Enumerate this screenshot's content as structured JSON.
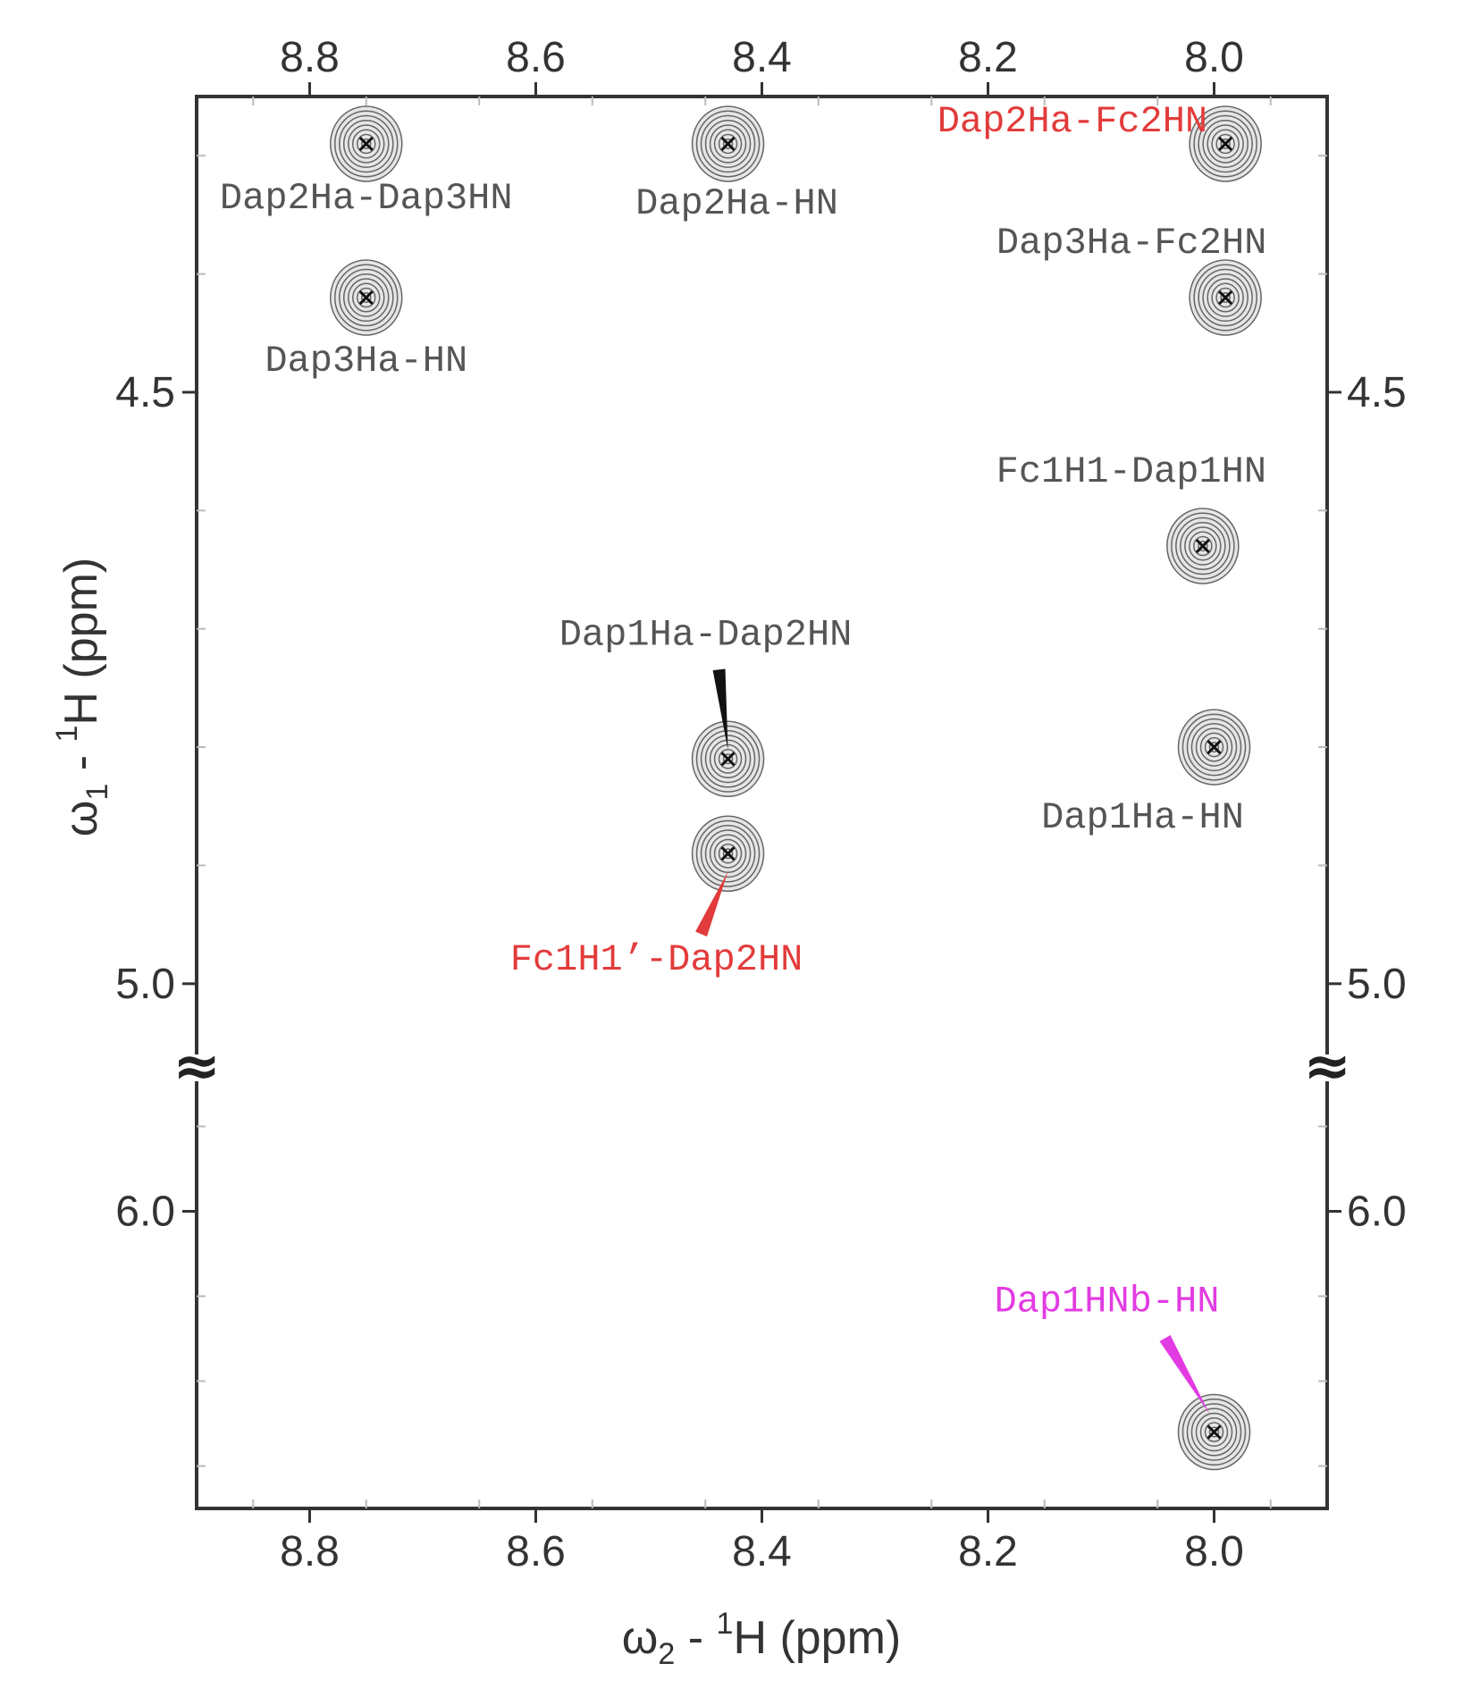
{
  "chart_data": {
    "type": "scatter",
    "title": "",
    "xlabel": {
      "main": "ω",
      "sub": "2",
      "dash": " - ",
      "sup": "1",
      "unit": "H  (ppm)"
    },
    "ylabel": {
      "main": "ω",
      "sub": "1",
      "dash": " - ",
      "sup": "1",
      "unit": "H  (ppm)"
    },
    "xlim": [
      8.9,
      7.9
    ],
    "x_reversed": true,
    "y_reversed": true,
    "axis_break": {
      "between": [
        5.05,
        5.85
      ],
      "symbol": "≈"
    },
    "y_segments": [
      {
        "range": [
          4.25,
          5.05
        ]
      },
      {
        "range": [
          5.85,
          6.35
        ]
      }
    ],
    "x_ticks": [
      "8.8",
      "8.6",
      "8.4",
      "8.2",
      "8.0"
    ],
    "x_tick_values": [
      8.8,
      8.6,
      8.4,
      8.2,
      8.0
    ],
    "y_ticks": [
      "4.5",
      "5.0",
      "6.0"
    ],
    "y_tick_values": [
      4.5,
      5.0,
      6.0
    ],
    "colors": {
      "black": "#555555",
      "red": "#e23b3b",
      "magenta": "#e23be2",
      "overlay_red": "#f07070"
    },
    "peaks": [
      {
        "label": "Dap2Ha-Dap3HN",
        "x": 8.75,
        "y": 4.29,
        "color": "black"
      },
      {
        "label": "Dap2Ha-HN",
        "x": 8.43,
        "y": 4.29,
        "color": "black"
      },
      {
        "label": "Dap2Ha-Fc2HN",
        "x": 7.99,
        "y": 4.29,
        "color": "red"
      },
      {
        "label": "Dap3Ha-Fc2HN",
        "x": 7.99,
        "y": 4.42,
        "color": "black"
      },
      {
        "label": "Dap3Ha-HN",
        "x": 8.75,
        "y": 4.42,
        "color": "black"
      },
      {
        "label": "Fc1H1-Dap1HN",
        "x": 8.01,
        "y": 4.63,
        "color": "black"
      },
      {
        "label": "Dap1Ha-Dap2HN",
        "x": 8.43,
        "y": 4.81,
        "color": "black"
      },
      {
        "label": "Dap1Ha-HN",
        "x": 8.0,
        "y": 4.8,
        "color": "black"
      },
      {
        "label": "Fc1H1’-Dap2HN",
        "x": 8.43,
        "y": 4.89,
        "color": "red"
      },
      {
        "label": "Dap1HNb-HN",
        "x": 8.0,
        "y": 6.26,
        "color": "magenta"
      }
    ]
  }
}
